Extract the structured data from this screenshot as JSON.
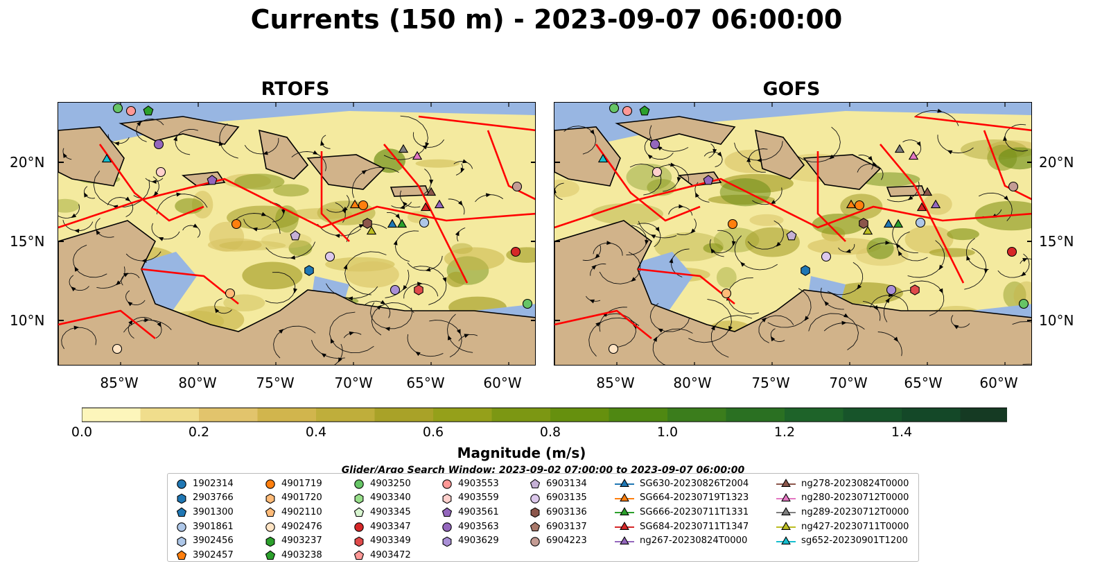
{
  "figure": {
    "title": "Currents (150 m) - 2023-09-07 06:00:00",
    "panels": [
      {
        "title": "RTOFS"
      },
      {
        "title": "GOFS"
      }
    ],
    "lat_ticks": [
      "20°N",
      "15°N",
      "10°N"
    ],
    "lon_ticks": [
      "85°W",
      "80°W",
      "75°W",
      "70°W",
      "65°W",
      "60°W"
    ]
  },
  "colorbar": {
    "label": "Magnitude (m/s)",
    "ticks": [
      "0.0",
      "0.2",
      "0.4",
      "0.6",
      "0.8",
      "1.0",
      "1.2",
      "1.4"
    ],
    "colors": [
      "#fdf6bb",
      "#f0dd8c",
      "#e2c46c",
      "#d1b54d",
      "#bfae3b",
      "#a9a228",
      "#95a01a",
      "#7c9713",
      "#66900e",
      "#4f8812",
      "#3b7d1c",
      "#2a7022",
      "#1e6329",
      "#17542a",
      "#144828",
      "#153a23",
      "#152d1d"
    ]
  },
  "legend": {
    "title": "Glider/Argo Search Window: 2023-09-02 07:00:00 to 2023-09-07 06:00:00",
    "columns": [
      [
        {
          "label": "1902314",
          "marker": "circle",
          "color": "#1f77b4"
        },
        {
          "label": "2903766",
          "marker": "hexagon",
          "color": "#1f77b4"
        },
        {
          "label": "3901300",
          "marker": "pentagon",
          "color": "#1f77b4"
        },
        {
          "label": "3901861",
          "marker": "circle",
          "color": "#aec7e8"
        },
        {
          "label": "3902456",
          "marker": "hexagon",
          "color": "#aec7e8"
        },
        {
          "label": "3902457",
          "marker": "pentagon",
          "color": "#ff7f0e"
        }
      ],
      [
        {
          "label": "4901719",
          "marker": "circle",
          "color": "#ff7f0e"
        },
        {
          "label": "4901720",
          "marker": "hexagon",
          "color": "#ffbb78"
        },
        {
          "label": "4902110",
          "marker": "pentagon",
          "color": "#ffbb78"
        },
        {
          "label": "4902476",
          "marker": "circle",
          "color": "#ffe4c4"
        },
        {
          "label": "4903237",
          "marker": "hexagon",
          "color": "#2ca02c"
        },
        {
          "label": "4903238",
          "marker": "pentagon",
          "color": "#2ca02c"
        }
      ],
      [
        {
          "label": "4903250",
          "marker": "circle",
          "color": "#66c566"
        },
        {
          "label": "4903340",
          "marker": "hexagon",
          "color": "#98df8a"
        },
        {
          "label": "4903345",
          "marker": "pentagon",
          "color": "#d8f5d0"
        },
        {
          "label": "4903347",
          "marker": "circle",
          "color": "#d62728"
        },
        {
          "label": "4903349",
          "marker": "hexagon",
          "color": "#e04a4a"
        },
        {
          "label": "4903472",
          "marker": "pentagon",
          "color": "#ff9896"
        }
      ],
      [
        {
          "label": "4903553",
          "marker": "circle",
          "color": "#ff9896"
        },
        {
          "label": "4903559",
          "marker": "hexagon",
          "color": "#ffd0cc"
        },
        {
          "label": "4903561",
          "marker": "pentagon",
          "color": "#9467bd"
        },
        {
          "label": "4903563",
          "marker": "circle",
          "color": "#9467bd"
        },
        {
          "label": "4903629",
          "marker": "hexagon",
          "color": "#a98fd6"
        }
      ],
      [
        {
          "label": "6903134",
          "marker": "pentagon",
          "color": "#c5b0d5"
        },
        {
          "label": "6903135",
          "marker": "circle",
          "color": "#dcc8ec"
        },
        {
          "label": "6903136",
          "marker": "hexagon",
          "color": "#8c564b"
        },
        {
          "label": "6903137",
          "marker": "pentagon",
          "color": "#a8786a"
        },
        {
          "label": "6904223",
          "marker": "circle",
          "color": "#c49c94"
        }
      ],
      [
        {
          "label": "SG630-20230826T2004",
          "marker": "triangle",
          "color": "#1f77b4"
        },
        {
          "label": "SG664-20230719T1323",
          "marker": "triangle",
          "color": "#ff7f0e"
        },
        {
          "label": "SG666-20230711T1331",
          "marker": "triangle",
          "color": "#2ca02c"
        },
        {
          "label": "SG684-20230711T1347",
          "marker": "triangle",
          "color": "#d62728"
        },
        {
          "label": "ng267-20230824T0000",
          "marker": "triangle",
          "color": "#9467bd"
        }
      ],
      [
        {
          "label": "ng278-20230824T0000",
          "marker": "triangle",
          "color": "#8c564b"
        },
        {
          "label": "ng280-20230712T0000",
          "marker": "triangle",
          "color": "#e377c2"
        },
        {
          "label": "ng289-20230712T0000",
          "marker": "triangle",
          "color": "#7f7f7f"
        },
        {
          "label": "ng427-20230711T0000",
          "marker": "triangle",
          "color": "#bcbd22"
        },
        {
          "label": "sg652-20230901T1200",
          "marker": "triangle",
          "color": "#17becf"
        }
      ]
    ]
  }
}
